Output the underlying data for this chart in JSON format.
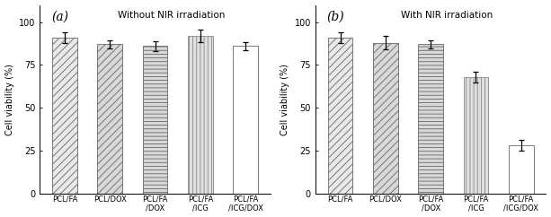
{
  "panel_a": {
    "title": "Without NIR irradiation",
    "label": "(a)",
    "categories": [
      "PCL/FA",
      "PCL/DOX",
      "PCL/FA\n/DOX",
      "PCL/FA\n/ICG",
      "PCL/FA\n/ICG/DOX"
    ],
    "values": [
      91,
      87,
      86,
      92,
      86
    ],
    "errors": [
      3.0,
      2.5,
      3.0,
      3.5,
      2.5
    ],
    "hatches": [
      "////",
      "////",
      "----",
      "||||",
      ""
    ],
    "facecolors": [
      "#e8e8e8",
      "#d8d8d8",
      "#d8d8d8",
      "#e0e0e0",
      "#ffffff"
    ],
    "edgecolors": [
      "#666666",
      "#666666",
      "#666666",
      "#888888",
      "#666666"
    ]
  },
  "panel_b": {
    "title": "With NIR irradiation",
    "label": "(b)",
    "categories": [
      "PCL/FA",
      "PCL/DOX",
      "PCL/FA\n/DOX",
      "PCL/FA\n/ICG",
      "PCL/FA\n/ICG/DOX"
    ],
    "values": [
      91,
      88,
      87,
      68,
      28
    ],
    "errors": [
      3.0,
      4.0,
      2.5,
      3.0,
      3.0
    ],
    "hatches": [
      "////",
      "////",
      "----",
      "||||",
      ""
    ],
    "facecolors": [
      "#e8e8e8",
      "#d8d8d8",
      "#d8d8d8",
      "#e0e0e0",
      "#ffffff"
    ],
    "edgecolors": [
      "#666666",
      "#666666",
      "#666666",
      "#888888",
      "#666666"
    ]
  },
  "ylabel": "Cell viability (%)",
  "ylim": [
    0,
    110
  ],
  "yticks": [
    0,
    25,
    50,
    75,
    100
  ],
  "bar_width": 0.55,
  "figsize": [
    6.13,
    2.42
  ],
  "dpi": 100
}
